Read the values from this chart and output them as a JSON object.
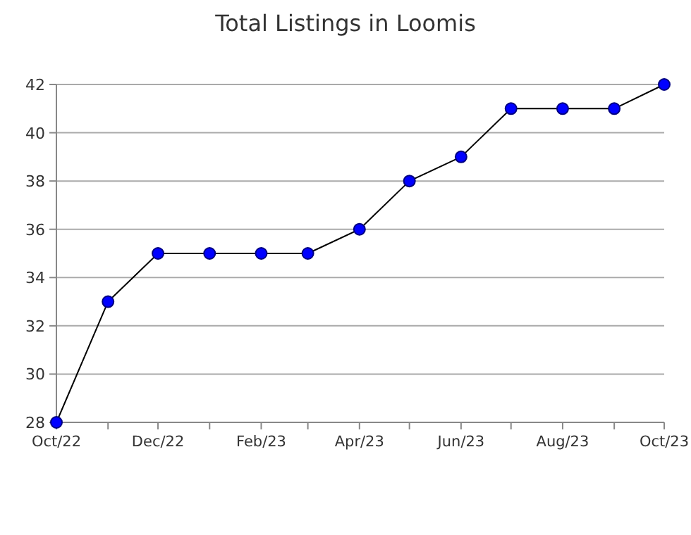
{
  "chart_data": {
    "type": "line",
    "title": "Total Listings in Loomis",
    "x": [
      "2022-10",
      "2022-11",
      "2022-12",
      "2023-01",
      "2023-02",
      "2023-03",
      "2023-04",
      "2023-05",
      "2023-06",
      "2023-07",
      "2023-08",
      "2023-09",
      "2023-10"
    ],
    "series": [
      {
        "color": "#0000ff",
        "values": [
          28,
          33,
          35,
          35,
          35,
          35,
          36,
          38,
          39,
          41,
          41,
          41,
          42
        ]
      }
    ],
    "xlim": [
      "2022-10",
      "2023-10"
    ],
    "xticks": [
      {
        "value": "2022-10",
        "label": "Oct/22"
      },
      {
        "value": "2022-11",
        "label": null
      },
      {
        "value": "2022-12",
        "label": "Dec/22"
      },
      {
        "value": "2023-01",
        "label": null
      },
      {
        "value": "2023-02",
        "label": "Feb/23"
      },
      {
        "value": "2023-03",
        "label": null
      },
      {
        "value": "2023-04",
        "label": "Apr/23"
      },
      {
        "value": "2023-05",
        "label": null
      },
      {
        "value": "2023-06",
        "label": "Jun/23"
      },
      {
        "value": "2023-07",
        "label": null
      },
      {
        "value": "2023-08",
        "label": "Aug/23"
      },
      {
        "value": "2023-09",
        "label": null
      },
      {
        "value": "2023-10",
        "label": "Oct/23"
      }
    ],
    "ylim": [
      28,
      42
    ],
    "yticks": [
      28,
      30,
      32,
      34,
      36,
      38,
      40,
      42
    ],
    "grid": "y",
    "marker": "circle",
    "line_style": "solid"
  }
}
